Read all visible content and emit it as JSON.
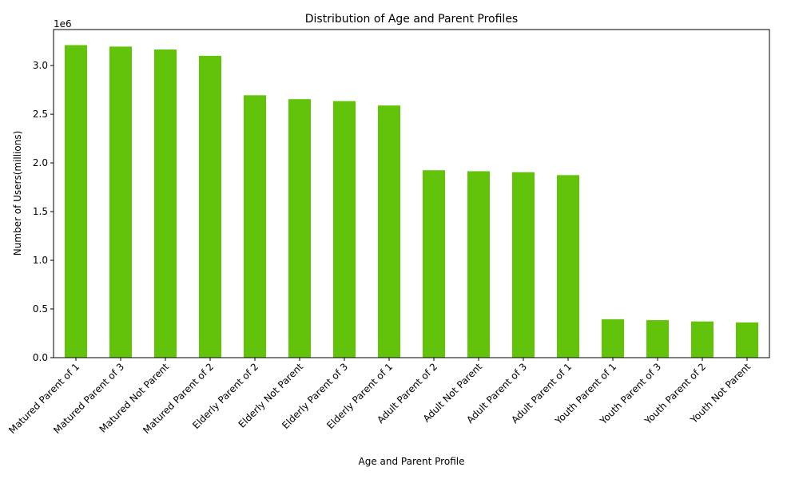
{
  "chart_data": {
    "type": "bar",
    "title": "Distribution of Age and Parent Profiles",
    "xlabel": "Age and Parent Profile",
    "ylabel": "Number of Users(millions)",
    "y_scale_label": "1e6",
    "categories": [
      "Matured Parent of 1",
      "Matured Parent of 3",
      "Matured Not Parent",
      "Matured Parent of 2",
      "Elderly Parent of 2",
      "Elderly Not Parent",
      "Elderly Parent of 3",
      "Elderly Parent of 1",
      "Adult Parent of 2",
      "Adult Not Parent",
      "Adult Parent of 3",
      "Adult Parent of 1",
      "Youth Parent of 1",
      "Youth Parent of 3",
      "Youth Parent of 2",
      "Youth Not Parent"
    ],
    "values": [
      3210000,
      3195000,
      3165000,
      3100000,
      2695000,
      2655000,
      2635000,
      2590000,
      1925000,
      1915000,
      1905000,
      1875000,
      395000,
      385000,
      372000,
      362000
    ],
    "ylim": [
      0,
      3370000
    ],
    "yticks": [
      0,
      500000,
      1000000,
      1500000,
      2000000,
      2500000,
      3000000
    ],
    "ytick_labels": [
      "0.0",
      "0.5",
      "1.0",
      "1.5",
      "2.0",
      "2.5",
      "3.0"
    ],
    "bar_color": "#63c30b",
    "grid": false,
    "legend": "none"
  }
}
